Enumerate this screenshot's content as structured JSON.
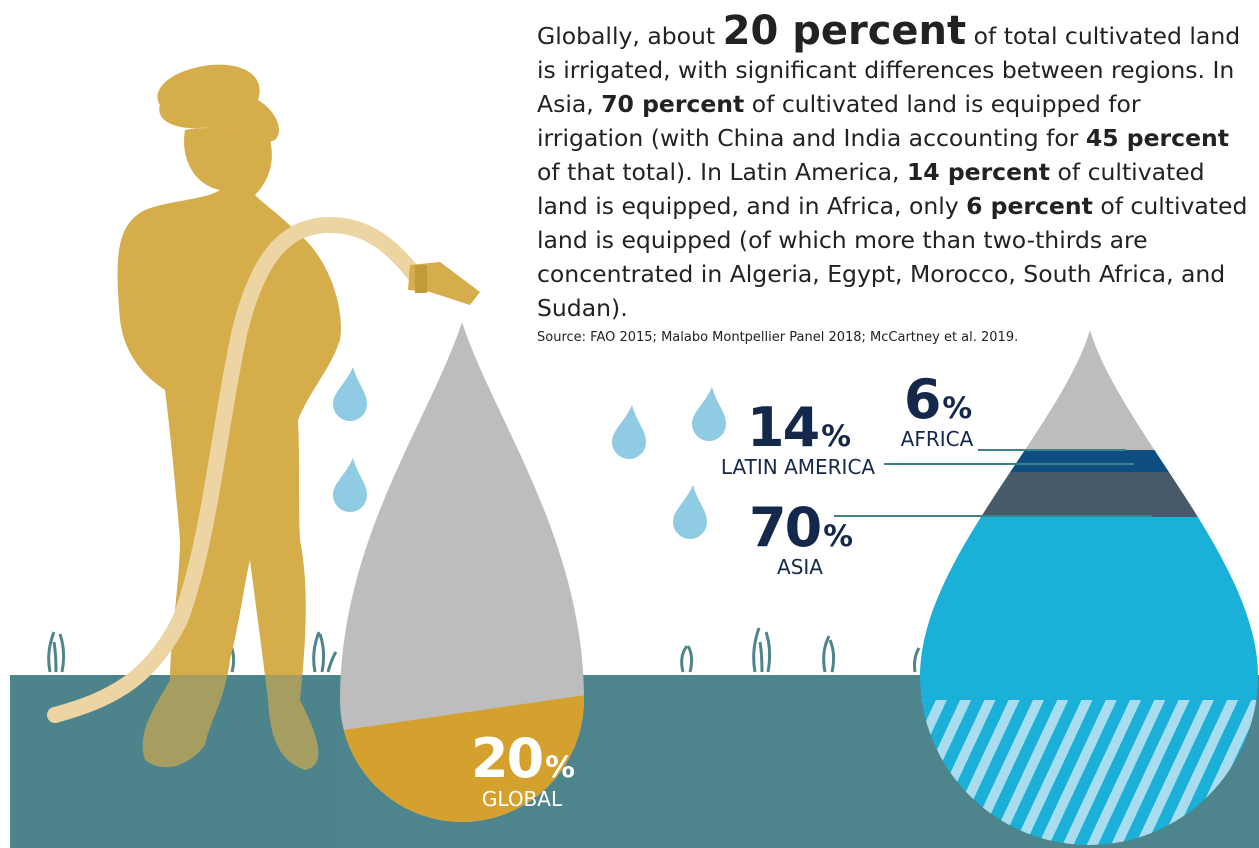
{
  "paragraph": [
    "Globally, about ",
    "20 percent",
    " of total cultivated land is irrigated, with significant differences between regions. In Asia, ",
    "70 percent",
    " of cultivated land is equipped for irrigation (with China and India accounting for ",
    "45 percent",
    " of that total). In Latin America, ",
    "14 percent",
    " of cultivated land is equipped, and in Africa, only ",
    "6 percent",
    " of cultivated land is equipped (of which more than two-thirds are concentrated in Algeria, Egypt, Morocco, South Africa, and Sudan)."
  ],
  "source": "Source: FAO 2015; Malabo Montpellier Panel 2018; McCartney et al. 2019.",
  "callouts": [
    {
      "value": 20,
      "unit": "%",
      "label": "GLOBAL"
    },
    {
      "value": 14,
      "unit": "%",
      "label": "LATIN AMERICA"
    },
    {
      "value": 6,
      "unit": "%",
      "label": "AFRICA"
    },
    {
      "value": 70,
      "unit": "%",
      "label": "ASIA"
    }
  ]
}
